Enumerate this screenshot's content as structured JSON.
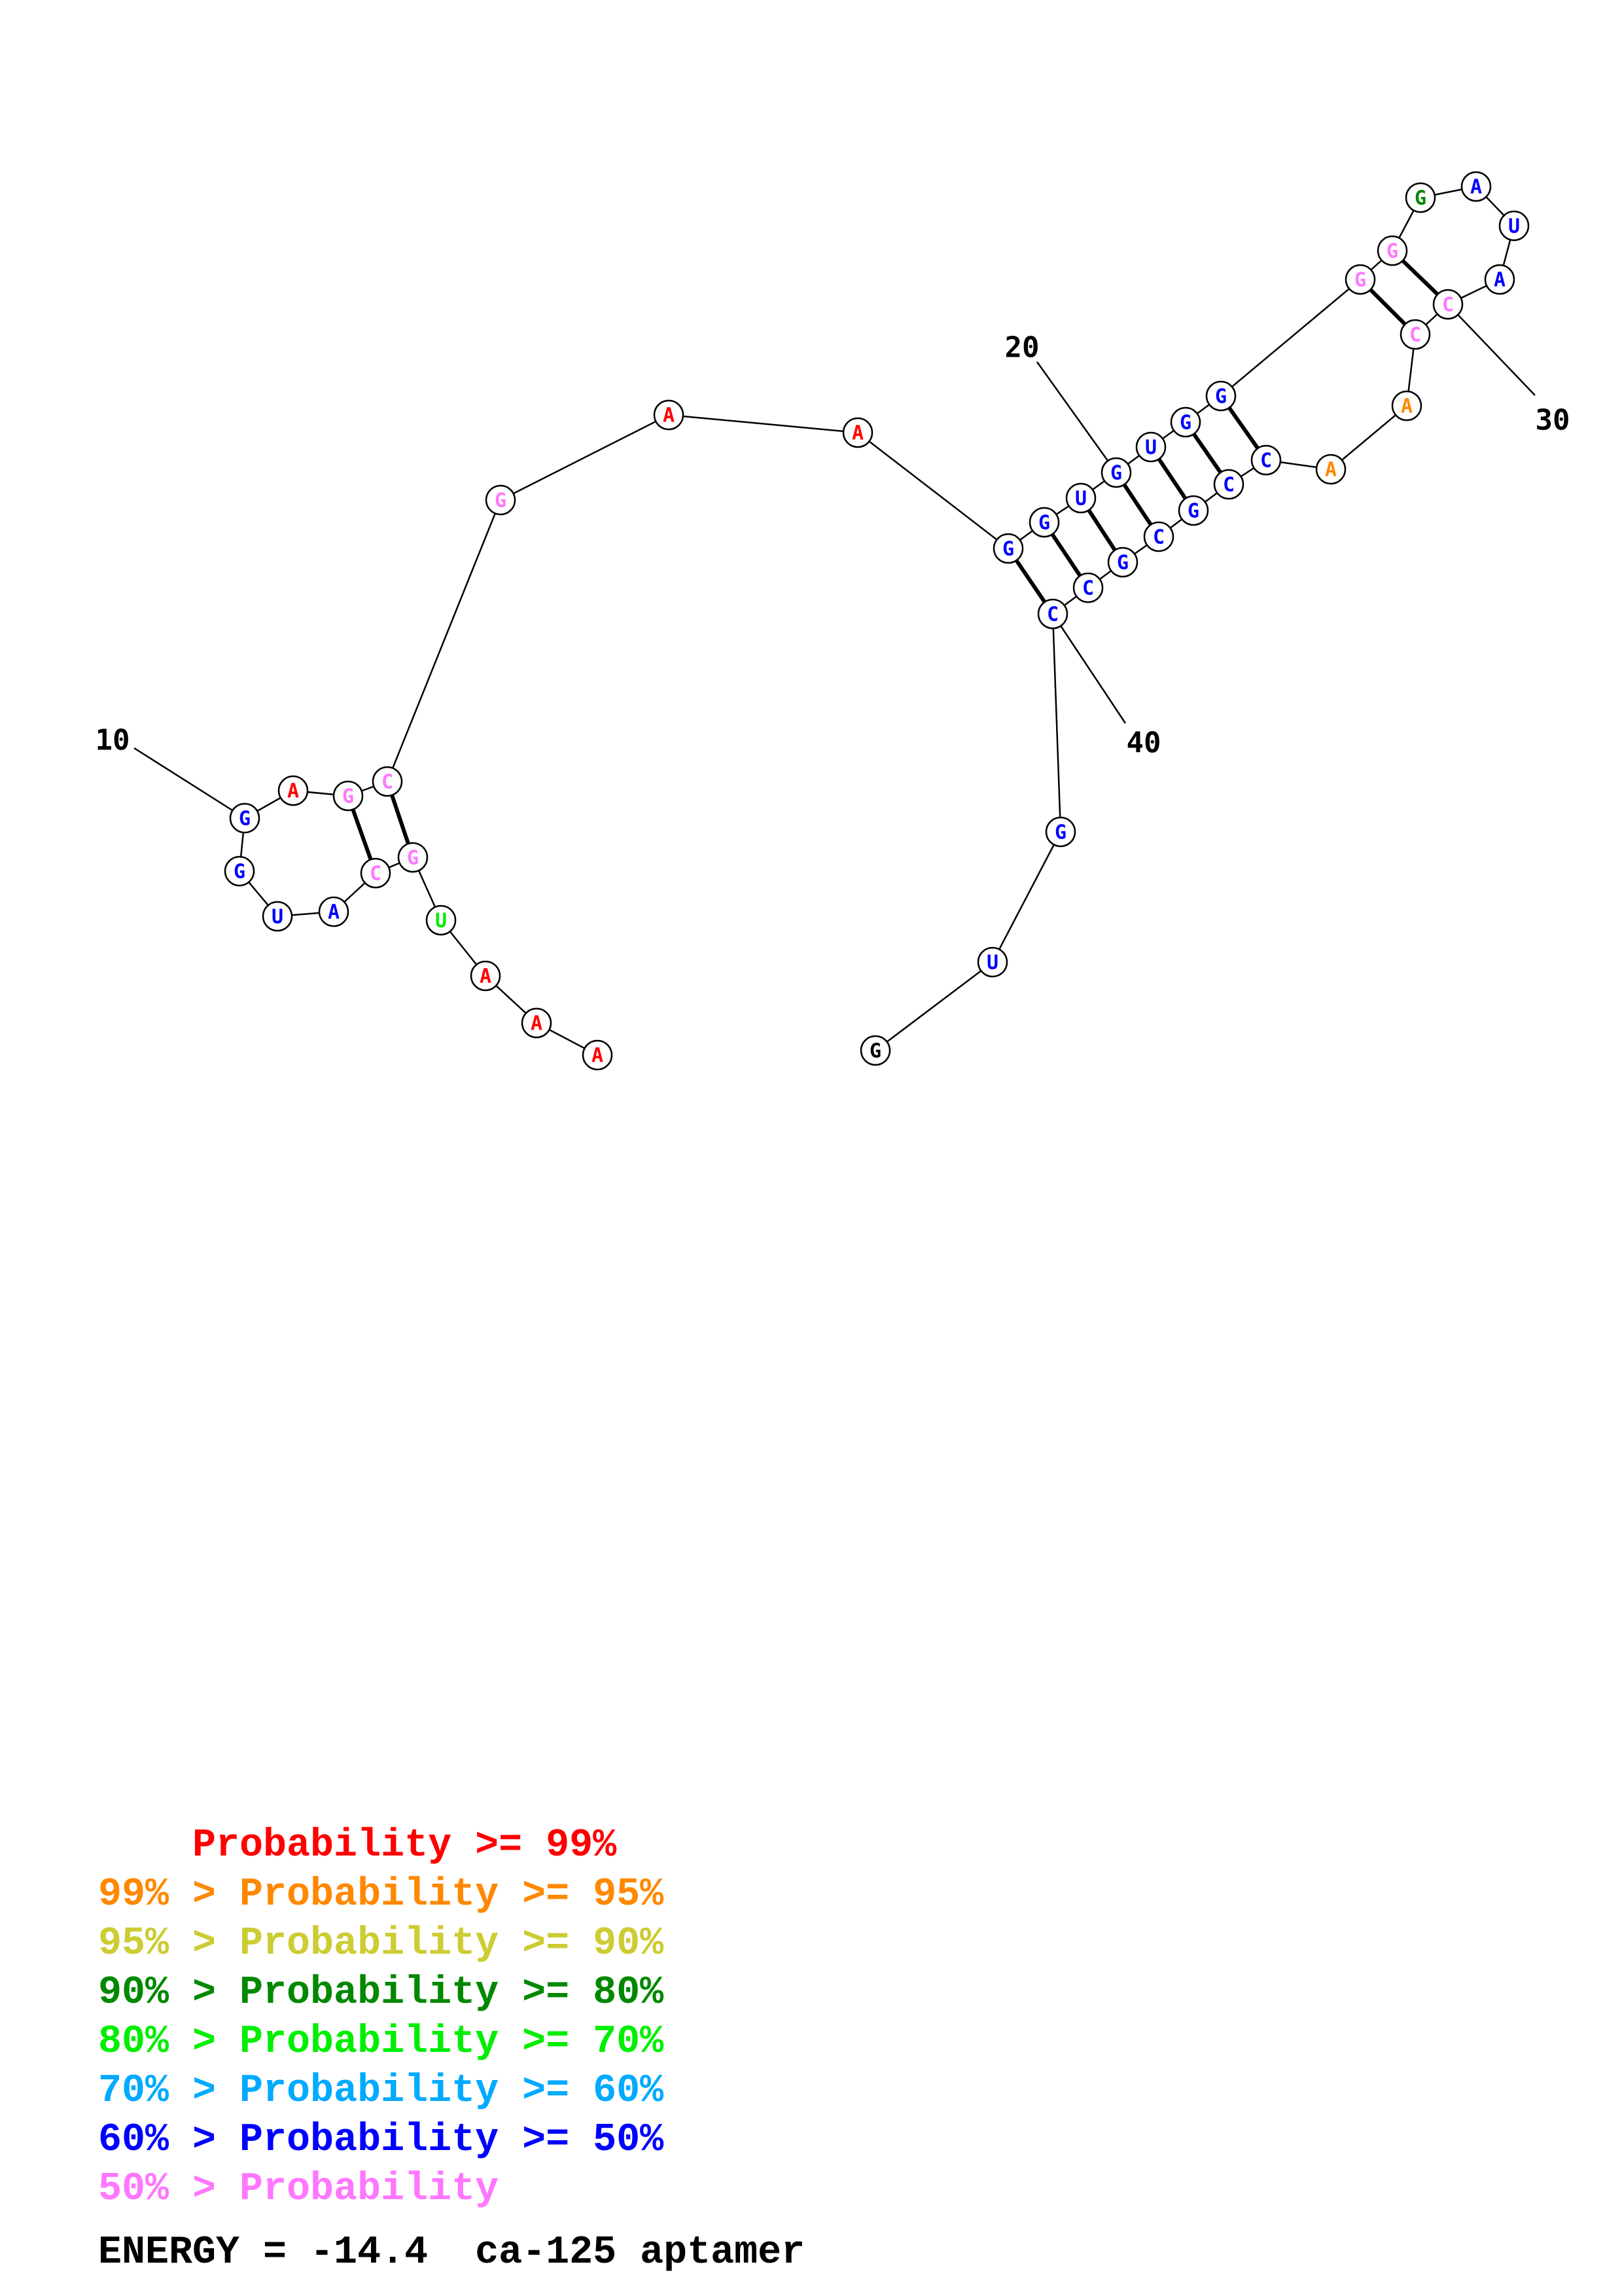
{
  "structure": {
    "nucleotides": [
      {
        "n": 1,
        "base": "A",
        "color": "#ff0000"
      },
      {
        "n": 2,
        "base": "A",
        "color": "#ff0000"
      },
      {
        "n": 3,
        "base": "A",
        "color": "#ff0000"
      },
      {
        "n": 4,
        "base": "U",
        "color": "#00ee00"
      },
      {
        "n": 5,
        "base": "G",
        "color": "#ff77ff"
      },
      {
        "n": 6,
        "base": "C",
        "color": "#ff77ff"
      },
      {
        "n": 7,
        "base": "A",
        "color": "#0000ff"
      },
      {
        "n": 8,
        "base": "U",
        "color": "#0000ff"
      },
      {
        "n": 9,
        "base": "G",
        "color": "#0000ff"
      },
      {
        "n": 10,
        "base": "G",
        "color": "#0000ff"
      },
      {
        "n": 11,
        "base": "A",
        "color": "#ff0000"
      },
      {
        "n": 12,
        "base": "G",
        "color": "#ff77ff"
      },
      {
        "n": 13,
        "base": "C",
        "color": "#ff77ff"
      },
      {
        "n": 14,
        "base": "G",
        "color": "#ff77ff"
      },
      {
        "n": 15,
        "base": "A",
        "color": "#ff0000"
      },
      {
        "n": 16,
        "base": "A",
        "color": "#ff0000"
      },
      {
        "n": 17,
        "base": "G",
        "color": "#0000ff"
      },
      {
        "n": 18,
        "base": "G",
        "color": "#0000ff"
      },
      {
        "n": 19,
        "base": "U",
        "color": "#0000ff"
      },
      {
        "n": 20,
        "base": "G",
        "color": "#0000ff"
      },
      {
        "n": 21,
        "base": "U",
        "color": "#0000ff"
      },
      {
        "n": 22,
        "base": "G",
        "color": "#0000ff"
      },
      {
        "n": 23,
        "base": "G",
        "color": "#0000ff"
      },
      {
        "n": 24,
        "base": "G",
        "color": "#ff77ff"
      },
      {
        "n": 25,
        "base": "G",
        "color": "#ff77ff"
      },
      {
        "n": 26,
        "base": "G",
        "color": "#008800"
      },
      {
        "n": 27,
        "base": "A",
        "color": "#0000ff"
      },
      {
        "n": 28,
        "base": "U",
        "color": "#0000ff"
      },
      {
        "n": 29,
        "base": "A",
        "color": "#0000ff"
      },
      {
        "n": 30,
        "base": "C",
        "color": "#ff77ff"
      },
      {
        "n": 31,
        "base": "C",
        "color": "#ff77ff"
      },
      {
        "n": 32,
        "base": "A",
        "color": "#ff8800"
      },
      {
        "n": 33,
        "base": "A",
        "color": "#ff8800"
      },
      {
        "n": 34,
        "base": "C",
        "color": "#0000ff"
      },
      {
        "n": 35,
        "base": "C",
        "color": "#0000ff"
      },
      {
        "n": 36,
        "base": "G",
        "color": "#0000ff"
      },
      {
        "n": 37,
        "base": "C",
        "color": "#0000ff"
      },
      {
        "n": 38,
        "base": "G",
        "color": "#0000ff"
      },
      {
        "n": 39,
        "base": "C",
        "color": "#0000ff"
      },
      {
        "n": 40,
        "base": "C",
        "color": "#0000ff"
      },
      {
        "n": 41,
        "base": "G",
        "color": "#0000ff"
      },
      {
        "n": 42,
        "base": "U",
        "color": "#0000ff"
      },
      {
        "n": 43,
        "base": "G",
        "color": "#000000"
      }
    ],
    "pairs": [
      [
        5,
        13
      ],
      [
        6,
        12
      ],
      [
        17,
        40
      ],
      [
        18,
        39
      ],
      [
        19,
        38
      ],
      [
        20,
        37
      ],
      [
        21,
        36
      ],
      [
        22,
        35
      ],
      [
        23,
        34
      ],
      [
        24,
        31
      ],
      [
        25,
        30
      ]
    ],
    "index_labels": [
      {
        "n": 10,
        "text": "10"
      },
      {
        "n": 20,
        "text": "20"
      },
      {
        "n": 30,
        "text": "30"
      },
      {
        "n": 40,
        "text": "40"
      }
    ]
  },
  "legend": [
    {
      "prefix": "    ",
      "text": "Probability >= 99%",
      "color": "#ff0000"
    },
    {
      "prefix": "99% > ",
      "text": "Probability >= 95%",
      "color": "#ff8800"
    },
    {
      "prefix": "95% > ",
      "text": "Probability >= 90%",
      "color": "#cccc33"
    },
    {
      "prefix": "90% > ",
      "text": "Probability >= 80%",
      "color": "#008800"
    },
    {
      "prefix": "80% > ",
      "text": "Probability >= 70%",
      "color": "#00ee00"
    },
    {
      "prefix": "70% > ",
      "text": "Probability >= 60%",
      "color": "#00aaff"
    },
    {
      "prefix": "60% > ",
      "text": "Probability >= 50%",
      "color": "#0000ff"
    },
    {
      "prefix": "50% > ",
      "text": "Probability",
      "color": "#ff77ff"
    }
  ],
  "energy": {
    "text": "ENERGY = -14.4  ca-125 aptamer"
  }
}
